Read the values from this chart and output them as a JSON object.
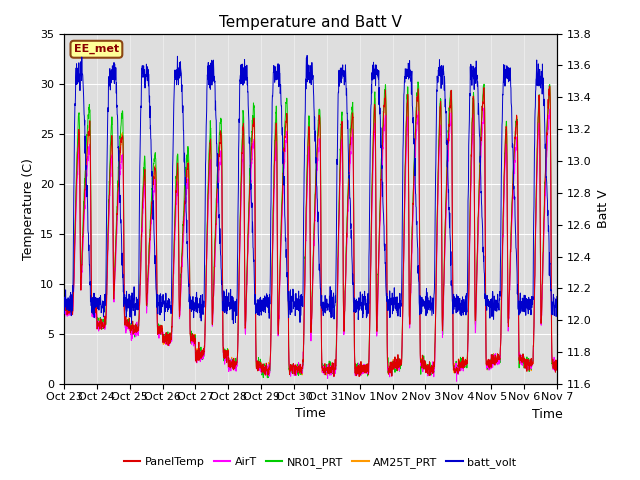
{
  "title": "Temperature and Batt V",
  "xlabel": "Time",
  "ylabel_left": "Temperature (C)",
  "ylabel_right": "Batt V",
  "annotation": "EE_met",
  "ylim_left": [
    0,
    35
  ],
  "ylim_right": [
    11.6,
    13.8
  ],
  "xtick_labels": [
    "Oct 23",
    "Oct 24",
    "Oct 25",
    "Oct 26",
    "Oct 27",
    "Oct 28",
    "Oct 29",
    "Oct 30",
    "Oct 31",
    "Nov 1",
    "Nov 2",
    "Nov 3",
    "Nov 4",
    "Nov 5",
    "Nov 6",
    "Nov 7"
  ],
  "colors": {
    "PanelTemp": "#dd0000",
    "AirT": "#ff00ff",
    "NR01_PRT": "#00cc00",
    "AM25T_PRT": "#ff9900",
    "batt_volt": "#0000cc"
  },
  "bg_color": "#dedede",
  "title_fontsize": 11,
  "axis_fontsize": 9,
  "tick_fontsize": 8,
  "annotation_facecolor": "#ffff99",
  "annotation_edgecolor": "#8B4513",
  "annotation_textcolor": "#8B0000"
}
